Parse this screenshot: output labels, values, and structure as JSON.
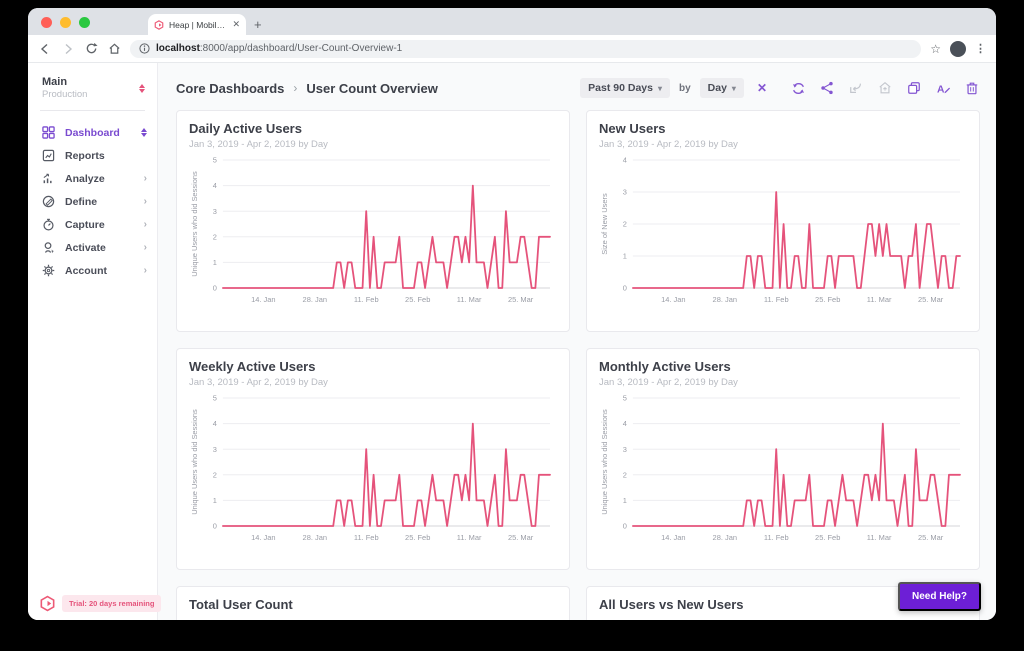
{
  "browser": {
    "tab_title": "Heap | Mobile and Web Analytics",
    "tab_close": "✕",
    "new_tab": "+",
    "url": {
      "host": "localhost",
      "rest": ":8000/app/dashboard/User-Count-Overview-1"
    },
    "star_icon": "☆",
    "menu_dots": "⋮"
  },
  "sidebar": {
    "workspace_name": "Main",
    "workspace_env": "Production",
    "items": [
      {
        "label": "Dashboard",
        "icon": "grid-icon",
        "active": true
      },
      {
        "label": "Reports",
        "icon": "report-icon"
      },
      {
        "label": "Analyze",
        "icon": "analyze-icon",
        "chevron": "›"
      },
      {
        "label": "Define",
        "icon": "define-icon",
        "chevron": "›"
      },
      {
        "label": "Capture",
        "icon": "capture-icon",
        "chevron": "›"
      },
      {
        "label": "Activate",
        "icon": "activate-icon",
        "chevron": "›"
      },
      {
        "label": "Account",
        "icon": "account-icon",
        "chevron": "›"
      }
    ],
    "trial_badge": "Trial: 20 days remaining"
  },
  "header": {
    "breadcrumb": {
      "parent": "Core Dashboards",
      "separator": "›",
      "current": "User Count Overview"
    },
    "date_range": "Past 90 Days",
    "by_label": "by",
    "granularity": "Day",
    "clear_label": "✕"
  },
  "chart_data": [
    {
      "type": "line",
      "title": "Daily Active Users",
      "subtitle": "Jan 3, 2019 - Apr 2, 2019 by Day",
      "ylabel": "Unique Users who did Sessions",
      "ylim": [
        0,
        5
      ],
      "yticks": [
        0,
        1,
        2,
        3,
        4,
        5
      ],
      "x_range": "Jan 3, 2019 to Apr 2, 2019, daily (90 points)",
      "x_tick_labels": [
        "14. Jan",
        "28. Jan",
        "11. Feb",
        "25. Feb",
        "11. Mar",
        "25. Mar"
      ],
      "x_tick_indices": [
        11,
        25,
        39,
        53,
        67,
        81
      ],
      "line_color": "#e5537b",
      "grid": true,
      "values": [
        0,
        0,
        0,
        0,
        0,
        0,
        0,
        0,
        0,
        0,
        0,
        0,
        0,
        0,
        0,
        0,
        0,
        0,
        0,
        0,
        0,
        0,
        0,
        0,
        0,
        0,
        0,
        0,
        0,
        0,
        0,
        1,
        1,
        0,
        1,
        1,
        0,
        0,
        0,
        3,
        0,
        2,
        0,
        0,
        1,
        1,
        1,
        1,
        2,
        0,
        0,
        0,
        0,
        1,
        1,
        0,
        1,
        2,
        1,
        1,
        1,
        0,
        1,
        2,
        2,
        1,
        2,
        1,
        4,
        1,
        1,
        1,
        0,
        1,
        2,
        0,
        0,
        3,
        1,
        1,
        1,
        2,
        2,
        1,
        0,
        0,
        2,
        2,
        2,
        2
      ]
    },
    {
      "type": "line",
      "title": "New Users",
      "subtitle": "Jan 3, 2019 - Apr 2, 2019 by Day",
      "ylabel": "Size of New Users",
      "ylim": [
        0,
        4
      ],
      "yticks": [
        0,
        1,
        2,
        3,
        4
      ],
      "x_range": "Jan 3, 2019 to Apr 2, 2019, daily (90 points)",
      "x_tick_labels": [
        "14. Jan",
        "28. Jan",
        "11. Feb",
        "25. Feb",
        "11. Mar",
        "25. Mar"
      ],
      "x_tick_indices": [
        11,
        25,
        39,
        53,
        67,
        81
      ],
      "line_color": "#e5537b",
      "grid": true,
      "values": [
        0,
        0,
        0,
        0,
        0,
        0,
        0,
        0,
        0,
        0,
        0,
        0,
        0,
        0,
        0,
        0,
        0,
        0,
        0,
        0,
        0,
        0,
        0,
        0,
        0,
        0,
        0,
        0,
        0,
        0,
        0,
        1,
        1,
        0,
        1,
        1,
        0,
        0,
        0,
        3,
        0,
        2,
        0,
        0,
        1,
        1,
        0,
        0,
        2,
        0,
        0,
        0,
        0,
        1,
        1,
        0,
        1,
        1,
        1,
        1,
        1,
        0,
        0,
        1,
        2,
        2,
        1,
        2,
        1,
        2,
        1,
        1,
        1,
        1,
        0,
        1,
        1,
        2,
        0,
        1,
        2,
        2,
        1,
        0,
        1,
        1,
        0,
        0,
        1,
        1
      ]
    },
    {
      "type": "line",
      "title": "Weekly Active Users",
      "subtitle": "Jan 3, 2019 - Apr 2, 2019 by Day",
      "ylabel": "Unique Users who did Sessions",
      "ylim": [
        0,
        5
      ],
      "yticks": [
        0,
        1,
        2,
        3,
        4,
        5
      ],
      "x_range": "Jan 3, 2019 to Apr 2, 2019, daily (90 points)",
      "x_tick_labels": [
        "14. Jan",
        "28. Jan",
        "11. Feb",
        "25. Feb",
        "11. Mar",
        "25. Mar"
      ],
      "x_tick_indices": [
        11,
        25,
        39,
        53,
        67,
        81
      ],
      "line_color": "#e5537b",
      "grid": true,
      "values": [
        0,
        0,
        0,
        0,
        0,
        0,
        0,
        0,
        0,
        0,
        0,
        0,
        0,
        0,
        0,
        0,
        0,
        0,
        0,
        0,
        0,
        0,
        0,
        0,
        0,
        0,
        0,
        0,
        0,
        0,
        0,
        1,
        1,
        0,
        1,
        1,
        0,
        0,
        0,
        3,
        0,
        2,
        0,
        0,
        1,
        1,
        1,
        1,
        2,
        0,
        0,
        0,
        0,
        1,
        1,
        0,
        1,
        2,
        1,
        1,
        1,
        0,
        1,
        2,
        2,
        1,
        2,
        1,
        4,
        1,
        1,
        1,
        0,
        1,
        2,
        0,
        0,
        3,
        1,
        1,
        1,
        2,
        2,
        1,
        0,
        0,
        2,
        2,
        2,
        2
      ]
    },
    {
      "type": "line",
      "title": "Monthly Active Users",
      "subtitle": "Jan 3, 2019 - Apr 2, 2019 by Day",
      "ylabel": "Unique Users who did Sessions",
      "ylim": [
        0,
        5
      ],
      "yticks": [
        0,
        1,
        2,
        3,
        4,
        5
      ],
      "x_range": "Jan 3, 2019 to Apr 2, 2019, daily (90 points)",
      "x_tick_labels": [
        "14. Jan",
        "28. Jan",
        "11. Feb",
        "25. Feb",
        "11. Mar",
        "25. Mar"
      ],
      "x_tick_indices": [
        11,
        25,
        39,
        53,
        67,
        81
      ],
      "line_color": "#e5537b",
      "grid": true,
      "values": [
        0,
        0,
        0,
        0,
        0,
        0,
        0,
        0,
        0,
        0,
        0,
        0,
        0,
        0,
        0,
        0,
        0,
        0,
        0,
        0,
        0,
        0,
        0,
        0,
        0,
        0,
        0,
        0,
        0,
        0,
        0,
        1,
        1,
        0,
        1,
        1,
        0,
        0,
        0,
        3,
        0,
        2,
        0,
        0,
        1,
        1,
        1,
        1,
        2,
        0,
        0,
        0,
        0,
        1,
        1,
        0,
        1,
        2,
        1,
        1,
        1,
        0,
        1,
        2,
        2,
        1,
        2,
        1,
        4,
        1,
        1,
        1,
        0,
        1,
        2,
        0,
        0,
        3,
        1,
        1,
        1,
        2,
        2,
        1,
        0,
        0,
        2,
        2,
        2,
        2
      ]
    }
  ],
  "partial_cards": [
    {
      "title": "Total User Count"
    },
    {
      "title": "All Users vs New Users"
    }
  ],
  "help_button": "Need Help?",
  "colors": {
    "accent_purple": "#7a4bd0",
    "line_pink": "#e5537b",
    "help_purple": "#6d1fd6",
    "trial_badge_bg": "#fce7ed",
    "disabled_icon": "#c3c6cd"
  }
}
